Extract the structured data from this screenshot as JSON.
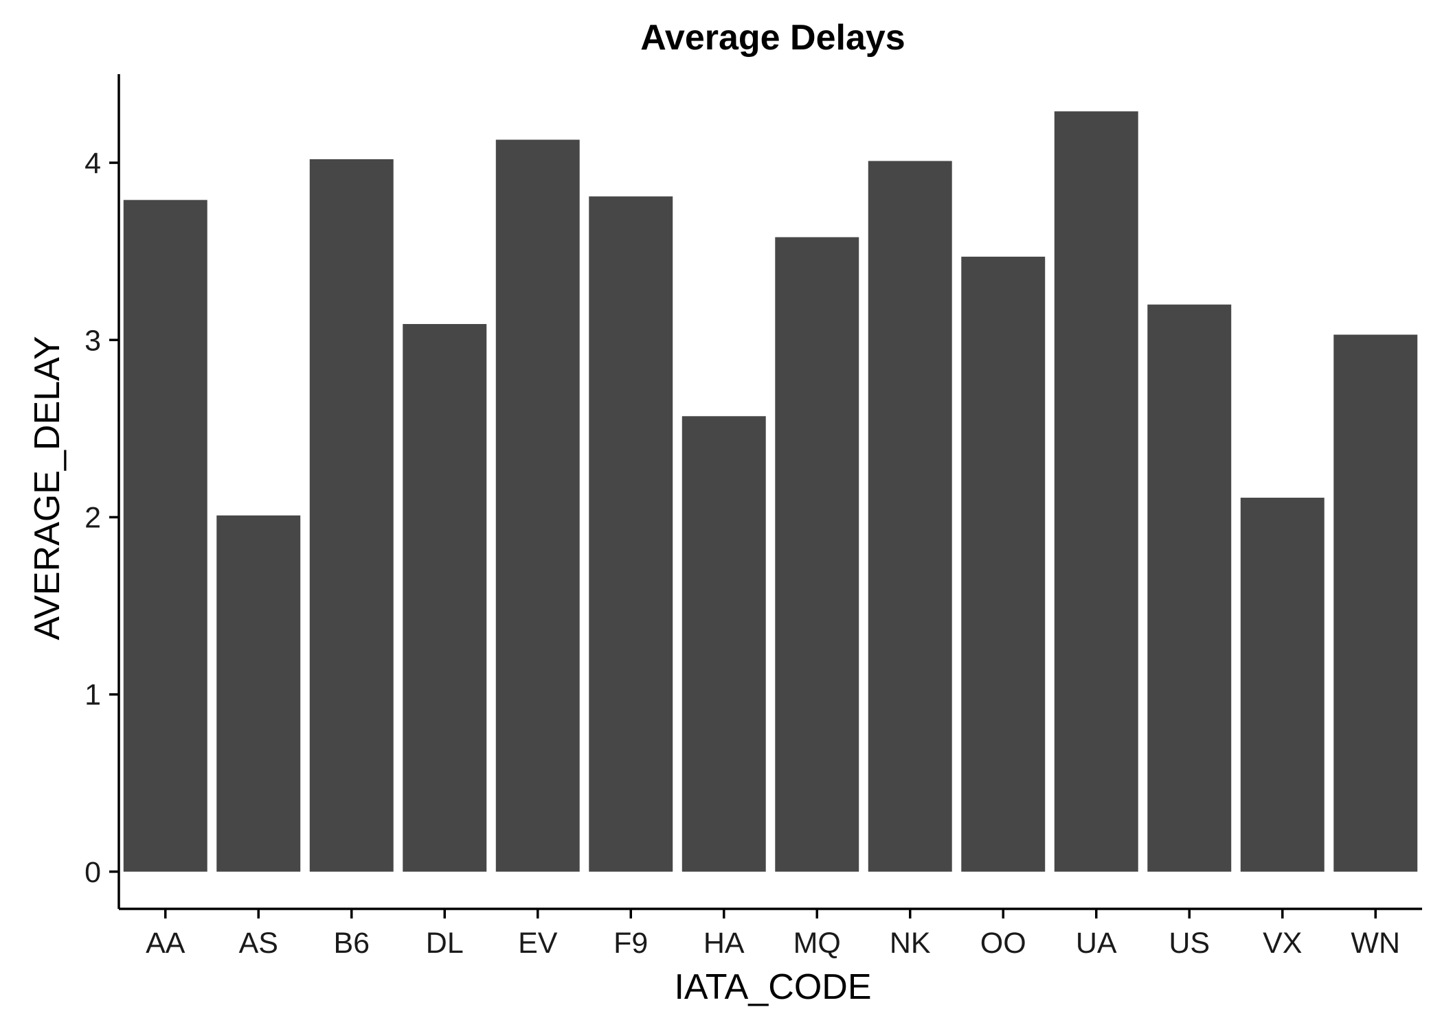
{
  "chart_data": {
    "type": "bar",
    "title": "Average Delays",
    "xlabel": "IATA_CODE",
    "ylabel": "AVERAGE_DELAY",
    "categories": [
      "AA",
      "AS",
      "B6",
      "DL",
      "EV",
      "F9",
      "HA",
      "MQ",
      "NK",
      "OO",
      "UA",
      "US",
      "VX",
      "WN"
    ],
    "values": [
      3.79,
      2.01,
      4.02,
      3.09,
      4.13,
      3.81,
      2.57,
      3.58,
      4.01,
      3.47,
      4.29,
      3.2,
      2.11,
      3.03
    ],
    "yticks": [
      0,
      1,
      2,
      3,
      4
    ],
    "ylim": [
      -0.21,
      4.5
    ],
    "grid": false,
    "legend": "none",
    "bar_color": "#474747"
  }
}
